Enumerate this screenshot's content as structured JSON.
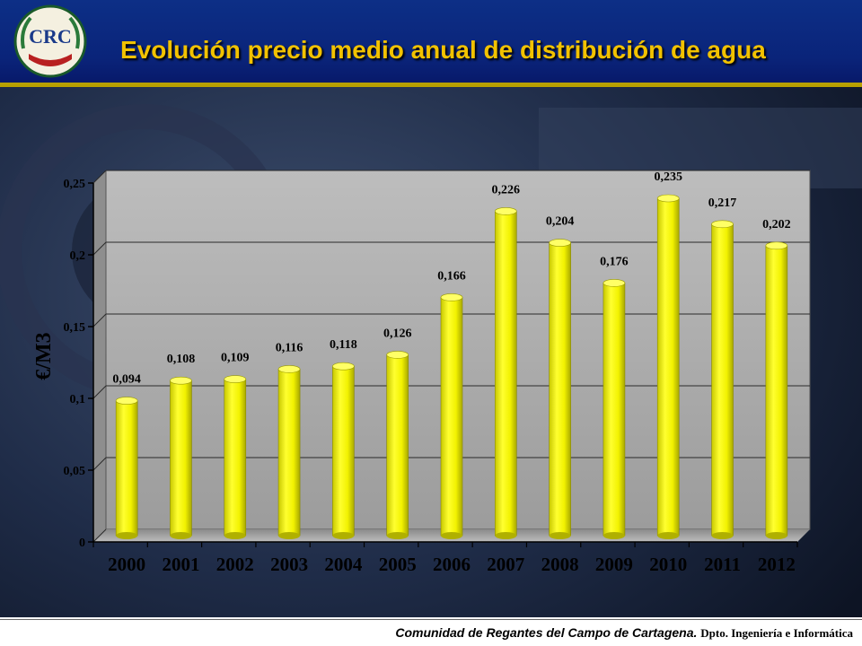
{
  "header": {
    "title": "Evolución precio medio anual de distribución de agua"
  },
  "footer": {
    "organization": "Comunidad de Regantes del Campo de Cartagena.",
    "department": "Dpto. Ingeniería e Informática"
  },
  "colors": {
    "bar": "#f2f200",
    "title": "#f2c200",
    "header_band": "#0a247a",
    "plot_background": "#c0c0c0"
  },
  "logo": {
    "icon": "association-emblem-icon",
    "text": "CRC"
  },
  "chart_data": {
    "type": "bar",
    "title": "",
    "xlabel": "",
    "ylabel": "€/M3",
    "categories": [
      "2000",
      "2001",
      "2002",
      "2003",
      "2004",
      "2005",
      "2006",
      "2007",
      "2008",
      "2009",
      "2010",
      "2011",
      "2012"
    ],
    "values": [
      0.094,
      0.108,
      0.109,
      0.116,
      0.118,
      0.126,
      0.166,
      0.226,
      0.204,
      0.176,
      0.235,
      0.217,
      0.202
    ],
    "data_labels": [
      "0,094",
      "0,108",
      "0,109",
      "0,116",
      "0,118",
      "0,126",
      "0,166",
      "0,226",
      "0,204",
      "0,176",
      "0,235",
      "0,217",
      "0,202"
    ],
    "ylim": [
      0,
      0.25
    ],
    "yticks": [
      0,
      0.05,
      0.1,
      0.15,
      0.2,
      0.25
    ],
    "ytick_labels": [
      "0",
      "0,05",
      "0,1",
      "0,15",
      "0,2",
      "0,25"
    ],
    "grid": true,
    "legend": "none",
    "bar_style": "3d-cylinder"
  }
}
